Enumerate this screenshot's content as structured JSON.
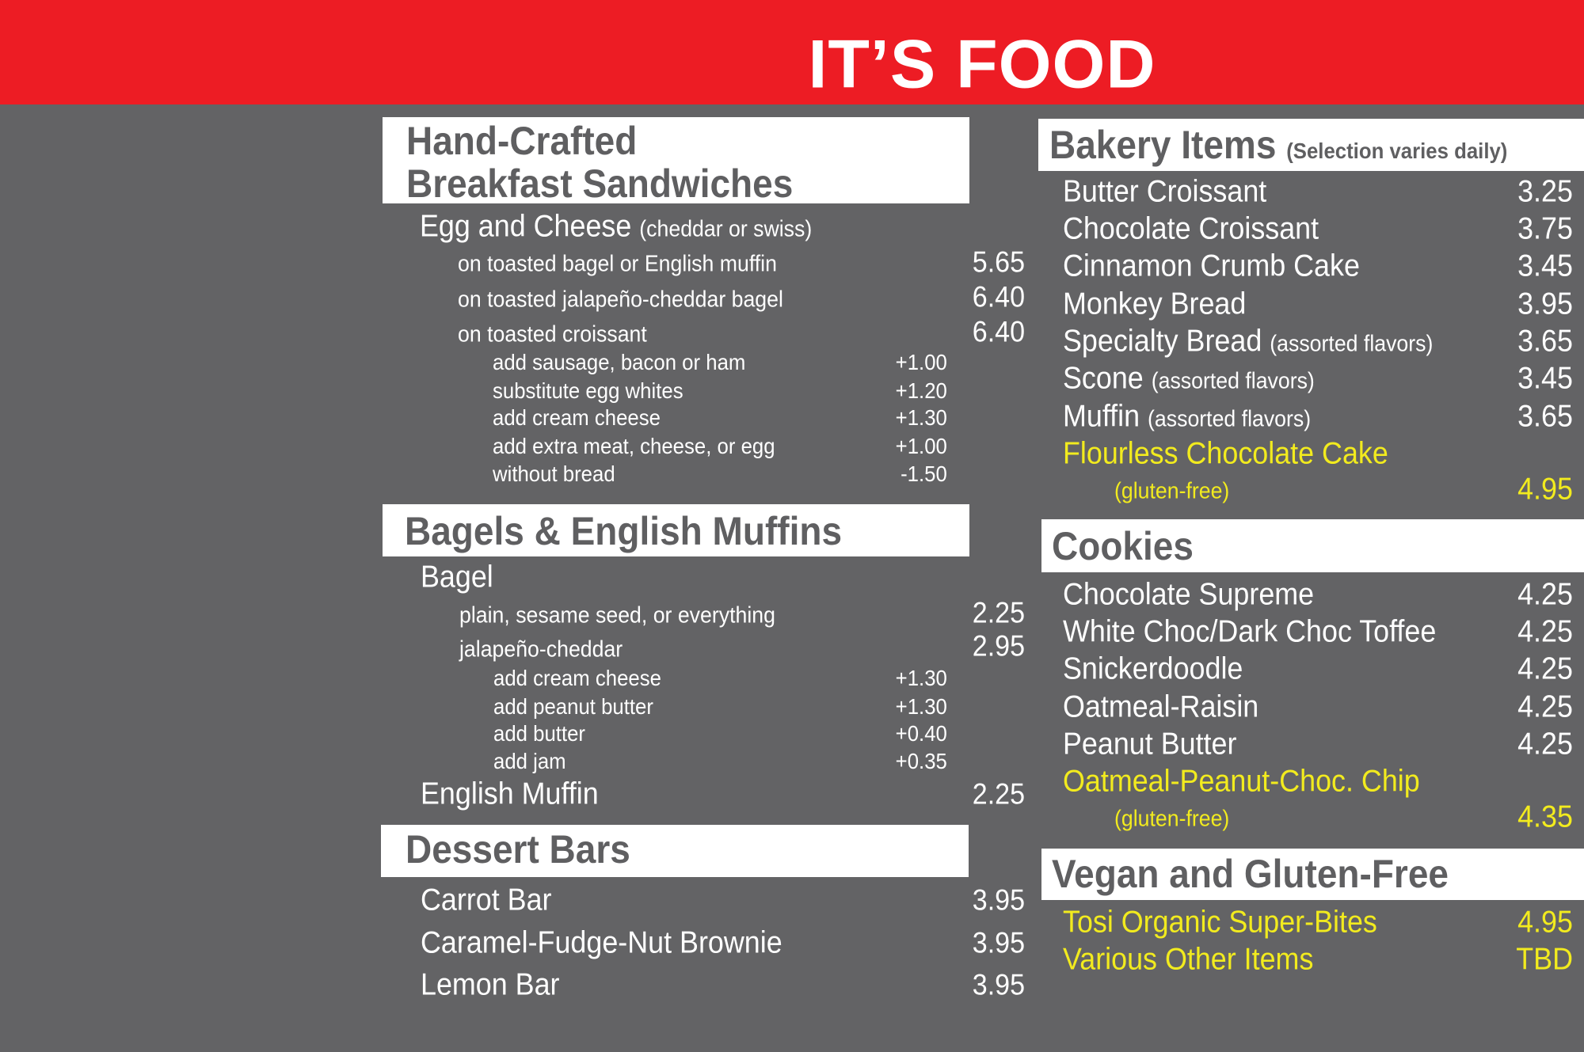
{
  "header": {
    "title": "IT’S FOOD"
  },
  "colors": {
    "banner": "#ED1C24",
    "background": "#636365",
    "heading_box": "#FFFFFF",
    "heading_text": "#5F5F61",
    "item_text": "#FFFFFF",
    "highlight": "#F2EB1E"
  },
  "breakfast": {
    "heading_line1": "Hand-Crafted",
    "heading_line2": "Breakfast Sandwiches",
    "item": "Egg and Cheese",
    "item_note": "(cheddar or swiss)",
    "options": [
      {
        "label": "on toasted bagel or English muffin",
        "price": "5.65"
      },
      {
        "label": "on toasted jalapeño-cheddar bagel",
        "price": "6.40"
      },
      {
        "label": "on toasted croissant",
        "price": "6.40"
      }
    ],
    "addons": [
      {
        "label": "add sausage, bacon or ham",
        "price": "+1.00"
      },
      {
        "label": "substitute egg whites",
        "price": "+1.20"
      },
      {
        "label": "add cream cheese",
        "price": "+1.30"
      },
      {
        "label": "add extra meat, cheese, or egg",
        "price": "+1.00"
      },
      {
        "label": "without bread",
        "price": "-1.50"
      }
    ]
  },
  "bagels": {
    "heading": "Bagels & English Muffins",
    "item": "Bagel",
    "options": [
      {
        "label": "plain, sesame seed, or everything",
        "price": "2.25"
      },
      {
        "label": "jalapeño-cheddar",
        "price": "2.95"
      }
    ],
    "addons": [
      {
        "label": "add cream cheese",
        "price": "+1.30"
      },
      {
        "label": "add peanut butter",
        "price": "+1.30"
      },
      {
        "label": "add butter",
        "price": "+0.40"
      },
      {
        "label": "add jam",
        "price": "+0.35"
      }
    ],
    "muffin": {
      "label": "English Muffin",
      "price": "2.25"
    }
  },
  "dessert": {
    "heading": "Dessert Bars",
    "items": [
      {
        "label": "Carrot Bar",
        "price": "3.95"
      },
      {
        "label": "Caramel-Fudge-Nut Brownie",
        "price": "3.95"
      },
      {
        "label": "Lemon Bar",
        "price": "3.95"
      }
    ]
  },
  "bakery": {
    "heading": "Bakery Items",
    "heading_note": "(Selection varies daily)",
    "items": [
      {
        "label": "Butter Croissant",
        "note": "",
        "price": "3.25"
      },
      {
        "label": "Chocolate Croissant",
        "note": "",
        "price": "3.75"
      },
      {
        "label": "Cinnamon Crumb Cake",
        "note": "",
        "price": "3.45"
      },
      {
        "label": "Monkey Bread",
        "note": "",
        "price": "3.95"
      },
      {
        "label": "Specialty Bread",
        "note": "(assorted flavors)",
        "price": "3.65"
      },
      {
        "label": "Scone",
        "note": "(assorted flavors)",
        "price": "3.45"
      },
      {
        "label": "Muffin",
        "note": "(assorted flavors)",
        "price": "3.65"
      }
    ],
    "special": {
      "label": "Flourless Chocolate Cake",
      "note": "(gluten-free)",
      "price": "4.95"
    }
  },
  "cookies": {
    "heading": "Cookies",
    "items": [
      {
        "label": "Chocolate Supreme",
        "price": "4.25"
      },
      {
        "label": "White Choc/Dark Choc Toffee",
        "price": "4.25"
      },
      {
        "label": "Snickerdoodle",
        "price": "4.25"
      },
      {
        "label": "Oatmeal-Raisin",
        "price": "4.25"
      },
      {
        "label": "Peanut Butter",
        "price": "4.25"
      }
    ],
    "special": {
      "label": "Oatmeal-Peanut-Choc. Chip",
      "note": "(gluten-free)",
      "price": "4.35"
    }
  },
  "vegan": {
    "heading": "Vegan and Gluten-Free",
    "items": [
      {
        "label": "Tosi Organic Super-Bites",
        "price": "4.95"
      },
      {
        "label": "Various Other Items",
        "price": "TBD"
      }
    ]
  }
}
